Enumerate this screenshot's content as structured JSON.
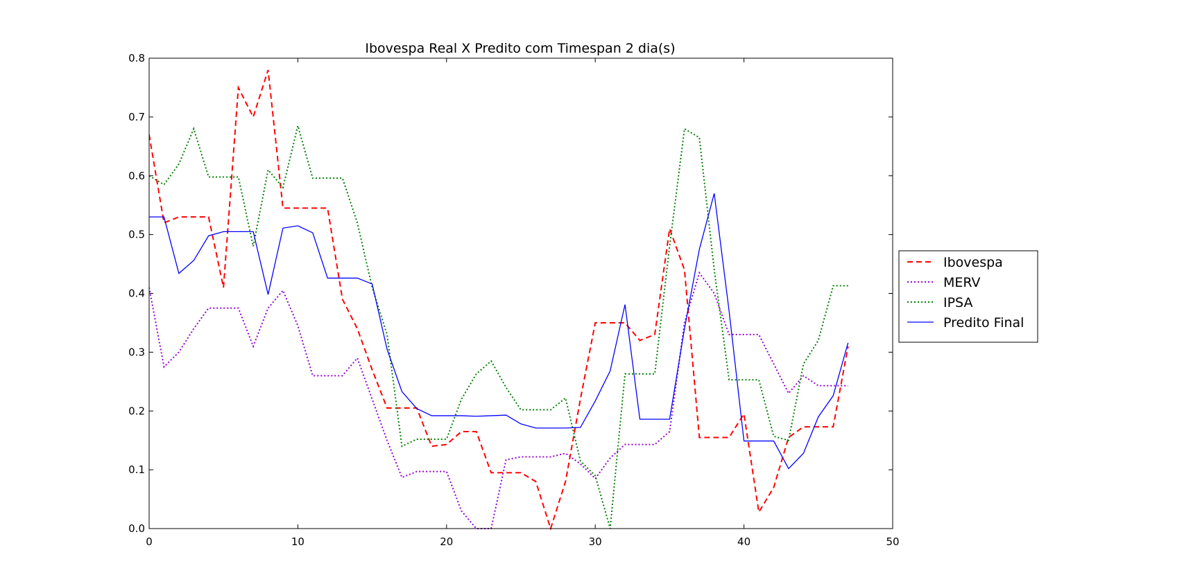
{
  "chart_data": {
    "type": "line",
    "title": "Ibovespa Real X Predito com Timespan 2 dia(s)",
    "xlabel": "",
    "ylabel": "",
    "xlim": [
      0,
      50
    ],
    "ylim": [
      0,
      0.8
    ],
    "grid": false,
    "legend_placement": "outside-right",
    "x_ticks": [
      0,
      10,
      20,
      30,
      40,
      50
    ],
    "x_tick_labels": [
      "0",
      "10",
      "20",
      "30",
      "40",
      "50"
    ],
    "y_ticks": [
      0,
      0.1,
      0.2,
      0.3,
      0.4,
      0.5,
      0.6,
      0.7,
      0.8
    ],
    "y_tick_labels": [
      "0.0",
      "0.1",
      "0.2",
      "0.3",
      "0.4",
      "0.5",
      "0.6",
      "0.7",
      "0.8"
    ],
    "x": [
      0,
      1,
      2,
      3,
      4,
      5,
      6,
      7,
      8,
      9,
      10,
      11,
      12,
      13,
      14,
      15,
      16,
      17,
      18,
      19,
      20,
      21,
      22,
      23,
      24,
      25,
      26,
      27,
      28,
      29,
      30,
      31,
      32,
      33,
      34,
      35,
      36,
      37,
      38,
      39,
      40,
      41,
      42,
      43,
      44,
      45,
      46,
      47
    ],
    "series": [
      {
        "name": "Ibovespa",
        "color": "#ff0000",
        "style": "dashed",
        "values": [
          0.67,
          0.52,
          0.53,
          0.53,
          0.53,
          0.41,
          0.75,
          0.7,
          0.78,
          0.545,
          0.545,
          0.545,
          0.545,
          0.39,
          0.34,
          0.27,
          0.205,
          0.205,
          0.205,
          0.14,
          0.143,
          0.165,
          0.165,
          0.095,
          0.095,
          0.095,
          0.08,
          0.0,
          0.08,
          0.22,
          0.35,
          0.35,
          0.35,
          0.32,
          0.33,
          0.51,
          0.44,
          0.155,
          0.155,
          0.155,
          0.195,
          0.028,
          0.07,
          0.155,
          0.173,
          0.173,
          0.173,
          0.31
        ]
      },
      {
        "name": "MERV",
        "color": "#9400d3",
        "style": "dotted",
        "values": [
          0.41,
          0.275,
          0.3,
          0.34,
          0.375,
          0.375,
          0.375,
          0.31,
          0.375,
          0.405,
          0.345,
          0.26,
          0.26,
          0.26,
          0.29,
          0.22,
          0.15,
          0.087,
          0.097,
          0.097,
          0.097,
          0.03,
          0.0,
          0.0,
          0.117,
          0.122,
          0.122,
          0.122,
          0.128,
          0.11,
          0.085,
          0.12,
          0.143,
          0.143,
          0.143,
          0.165,
          0.35,
          0.435,
          0.4,
          0.33,
          0.33,
          0.33,
          0.28,
          0.23,
          0.26,
          0.243,
          0.243,
          0.243
        ]
      },
      {
        "name": "IPSA",
        "color": "#008000",
        "style": "dotted",
        "values": [
          0.6,
          0.585,
          0.62,
          0.68,
          0.598,
          0.598,
          0.598,
          0.48,
          0.61,
          0.58,
          0.685,
          0.596,
          0.596,
          0.596,
          0.52,
          0.41,
          0.33,
          0.14,
          0.152,
          0.152,
          0.152,
          0.22,
          0.263,
          0.285,
          0.24,
          0.202,
          0.202,
          0.202,
          0.222,
          0.115,
          0.09,
          0.0,
          0.263,
          0.263,
          0.263,
          0.48,
          0.68,
          0.665,
          0.44,
          0.253,
          0.253,
          0.253,
          0.157,
          0.15,
          0.28,
          0.32,
          0.413,
          0.413
        ]
      },
      {
        "name": "Predito Final",
        "color": "#0000ff",
        "style": "solid",
        "values": [
          0.53,
          0.53,
          0.434,
          0.456,
          0.498,
          0.505,
          0.505,
          0.505,
          0.398,
          0.511,
          0.515,
          0.503,
          0.426,
          0.426,
          0.426,
          0.416,
          0.305,
          0.233,
          0.204,
          0.192,
          0.192,
          0.192,
          0.191,
          0.192,
          0.193,
          0.178,
          0.171,
          0.171,
          0.171,
          0.172,
          0.217,
          0.268,
          0.381,
          0.186,
          0.186,
          0.186,
          0.34,
          0.475,
          0.57,
          0.37,
          0.149,
          0.149,
          0.149,
          0.102,
          0.128,
          0.19,
          0.226,
          0.316
        ]
      }
    ]
  }
}
